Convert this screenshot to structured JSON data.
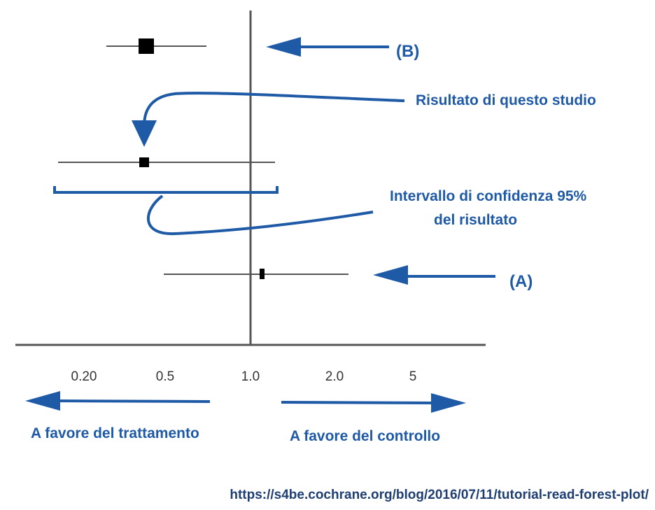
{
  "chart_data": {
    "type": "forest",
    "x_scale": "log",
    "reference_value": 1.0,
    "x_ticks": [
      "0.20",
      "0.5",
      "1.0",
      "2.0",
      "5"
    ],
    "studies": [
      {
        "label": "(B)",
        "estimate": 0.4,
        "ci": [
          0.17,
          0.72
        ]
      },
      {
        "label": "",
        "estimate": 0.4,
        "ci": [
          0.13,
          1.2
        ]
      },
      {
        "label": "(A)",
        "estimate": 1.08,
        "ci": [
          0.48,
          2.2
        ]
      }
    ]
  },
  "annotations": {
    "b_label": "(B)",
    "a_label": "(A)",
    "result_label": "Risultato di questo studio",
    "ci_label_line1": "Intervallo di confidenza 95%",
    "ci_label_line2": "del risultato"
  },
  "directions": {
    "left_label": "A favore del trattamento",
    "right_label": "A favore del controllo"
  },
  "source_url": "https://s4be.cochrane.org/blog/2016/07/11/tutorial-read-forest-plot/",
  "colors": {
    "accent_blue": "#1f5aa6",
    "axis": "#555555",
    "marker": "#000000"
  }
}
